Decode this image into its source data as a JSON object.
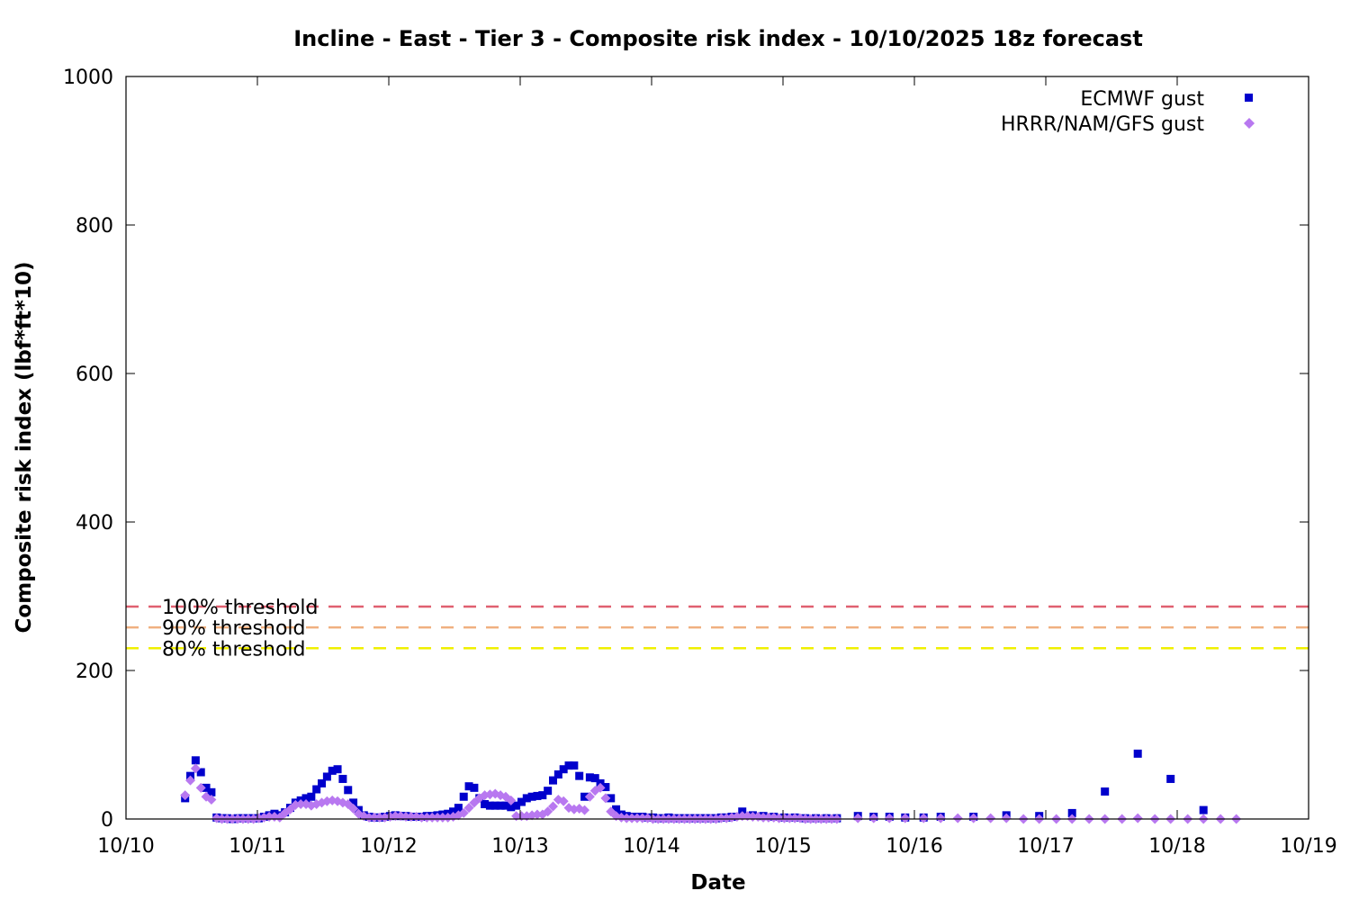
{
  "chart_data": {
    "type": "scatter",
    "title": "Incline - East - Tier 3 - Composite risk index - 10/10/2025 18z forecast",
    "xlabel": "Date",
    "ylabel": "Composite risk index (lbf*ft*10)",
    "xlim": [
      "10/10",
      "10/19"
    ],
    "ylim": [
      0,
      1000
    ],
    "x_ticks": [
      "10/10",
      "10/11",
      "10/12",
      "10/13",
      "10/14",
      "10/15",
      "10/16",
      "10/17",
      "10/18",
      "10/19"
    ],
    "y_ticks": [
      0,
      200,
      400,
      600,
      800,
      1000
    ],
    "grid": false,
    "legend_position": "top-right",
    "thresholds": [
      {
        "label": "100% threshold",
        "value": 286,
        "color": "#e06070"
      },
      {
        "label": "90% threshold",
        "value": 258,
        "color": "#f0b080"
      },
      {
        "label": "80% threshold",
        "value": 230,
        "color": "#f0f000"
      }
    ],
    "series": [
      {
        "name": "ECMWF gust",
        "marker": "square",
        "color": "#0000cc",
        "points": [
          [
            10.45,
            28
          ],
          [
            10.49,
            58
          ],
          [
            10.53,
            79
          ],
          [
            10.57,
            63
          ],
          [
            10.61,
            42
          ],
          [
            10.65,
            36
          ],
          [
            10.69,
            2
          ],
          [
            10.73,
            1
          ],
          [
            10.77,
            1
          ],
          [
            10.81,
            0
          ],
          [
            10.85,
            1
          ],
          [
            10.89,
            1
          ],
          [
            10.93,
            1
          ],
          [
            10.97,
            1
          ],
          [
            11.01,
            1
          ],
          [
            11.05,
            3
          ],
          [
            11.09,
            5
          ],
          [
            11.13,
            7
          ],
          [
            11.17,
            5
          ],
          [
            11.21,
            9
          ],
          [
            11.25,
            15
          ],
          [
            11.29,
            22
          ],
          [
            11.33,
            25
          ],
          [
            11.37,
            28
          ],
          [
            11.41,
            30
          ],
          [
            11.45,
            40
          ],
          [
            11.49,
            48
          ],
          [
            11.53,
            57
          ],
          [
            11.57,
            65
          ],
          [
            11.61,
            67
          ],
          [
            11.65,
            54
          ],
          [
            11.69,
            39
          ],
          [
            11.73,
            22
          ],
          [
            11.77,
            12
          ],
          [
            11.81,
            5
          ],
          [
            11.85,
            3
          ],
          [
            11.89,
            2
          ],
          [
            11.93,
            2
          ],
          [
            11.97,
            3
          ],
          [
            12.01,
            4
          ],
          [
            12.05,
            5
          ],
          [
            12.09,
            4
          ],
          [
            12.13,
            4
          ],
          [
            12.17,
            3
          ],
          [
            12.21,
            3
          ],
          [
            12.25,
            3
          ],
          [
            12.29,
            4
          ],
          [
            12.33,
            4
          ],
          [
            12.37,
            5
          ],
          [
            12.41,
            6
          ],
          [
            12.45,
            7
          ],
          [
            12.49,
            10
          ],
          [
            12.53,
            15
          ],
          [
            12.57,
            30
          ],
          [
            12.61,
            44
          ],
          [
            12.65,
            42
          ],
          [
            12.69,
            28
          ],
          [
            12.73,
            20
          ],
          [
            12.77,
            18
          ],
          [
            12.81,
            18
          ],
          [
            12.85,
            18
          ],
          [
            12.89,
            18
          ],
          [
            12.93,
            16
          ],
          [
            12.97,
            18
          ],
          [
            13.01,
            23
          ],
          [
            13.05,
            28
          ],
          [
            13.09,
            30
          ],
          [
            13.13,
            31
          ],
          [
            13.17,
            32
          ],
          [
            13.21,
            38
          ],
          [
            13.25,
            52
          ],
          [
            13.29,
            60
          ],
          [
            13.33,
            67
          ],
          [
            13.37,
            72
          ],
          [
            13.41,
            72
          ],
          [
            13.45,
            58
          ],
          [
            13.49,
            30
          ],
          [
            13.53,
            56
          ],
          [
            13.57,
            55
          ],
          [
            13.61,
            48
          ],
          [
            13.65,
            43
          ],
          [
            13.69,
            28
          ],
          [
            13.73,
            13
          ],
          [
            13.77,
            6
          ],
          [
            13.81,
            4
          ],
          [
            13.85,
            3
          ],
          [
            13.89,
            3
          ],
          [
            13.93,
            3
          ],
          [
            13.97,
            2
          ],
          [
            14.01,
            2
          ],
          [
            14.05,
            1
          ],
          [
            14.09,
            1
          ],
          [
            14.13,
            2
          ],
          [
            14.17,
            1
          ],
          [
            14.21,
            1
          ],
          [
            14.25,
            1
          ],
          [
            14.29,
            1
          ],
          [
            14.33,
            1
          ],
          [
            14.37,
            1
          ],
          [
            14.41,
            1
          ],
          [
            14.45,
            1
          ],
          [
            14.49,
            1
          ],
          [
            14.53,
            2
          ],
          [
            14.57,
            2
          ],
          [
            14.61,
            3
          ],
          [
            14.69,
            10
          ],
          [
            14.77,
            5
          ],
          [
            14.85,
            4
          ],
          [
            14.93,
            3
          ],
          [
            15.01,
            2
          ],
          [
            15.09,
            2
          ],
          [
            15.17,
            1
          ],
          [
            15.25,
            1
          ],
          [
            15.33,
            1
          ],
          [
            15.41,
            1
          ],
          [
            15.57,
            4
          ],
          [
            15.69,
            3
          ],
          [
            15.81,
            3
          ],
          [
            15.93,
            2
          ],
          [
            16.07,
            2
          ],
          [
            16.2,
            3
          ],
          [
            16.45,
            3
          ],
          [
            16.7,
            5
          ],
          [
            16.95,
            4
          ],
          [
            17.2,
            8
          ],
          [
            17.45,
            37
          ],
          [
            17.7,
            88
          ],
          [
            17.95,
            54
          ],
          [
            18.2,
            12
          ]
        ]
      },
      {
        "name": "HRRR/NAM/GFS gust",
        "marker": "diamond",
        "color": "#b878f0",
        "points": [
          [
            10.45,
            32
          ],
          [
            10.49,
            52
          ],
          [
            10.53,
            68
          ],
          [
            10.57,
            42
          ],
          [
            10.61,
            30
          ],
          [
            10.65,
            26
          ],
          [
            10.69,
            1
          ],
          [
            10.73,
            0
          ],
          [
            10.77,
            0
          ],
          [
            10.81,
            0
          ],
          [
            10.85,
            0
          ],
          [
            10.89,
            0
          ],
          [
            10.93,
            0
          ],
          [
            10.97,
            0
          ],
          [
            11.01,
            1
          ],
          [
            11.05,
            2
          ],
          [
            11.09,
            3
          ],
          [
            11.13,
            3
          ],
          [
            11.17,
            2
          ],
          [
            11.21,
            8
          ],
          [
            11.25,
            13
          ],
          [
            11.29,
            19
          ],
          [
            11.33,
            20
          ],
          [
            11.37,
            20
          ],
          [
            11.41,
            18
          ],
          [
            11.45,
            20
          ],
          [
            11.49,
            22
          ],
          [
            11.53,
            24
          ],
          [
            11.57,
            25
          ],
          [
            11.61,
            24
          ],
          [
            11.65,
            22
          ],
          [
            11.69,
            20
          ],
          [
            11.73,
            14
          ],
          [
            11.77,
            7
          ],
          [
            11.81,
            4
          ],
          [
            11.85,
            2
          ],
          [
            11.89,
            2
          ],
          [
            11.93,
            2
          ],
          [
            11.97,
            2
          ],
          [
            12.01,
            3
          ],
          [
            12.05,
            4
          ],
          [
            12.09,
            4
          ],
          [
            12.13,
            3
          ],
          [
            12.17,
            3
          ],
          [
            12.21,
            3
          ],
          [
            12.25,
            2
          ],
          [
            12.29,
            2
          ],
          [
            12.33,
            2
          ],
          [
            12.37,
            2
          ],
          [
            12.41,
            2
          ],
          [
            12.45,
            2
          ],
          [
            12.49,
            3
          ],
          [
            12.53,
            5
          ],
          [
            12.57,
            8
          ],
          [
            12.61,
            15
          ],
          [
            12.65,
            22
          ],
          [
            12.69,
            28
          ],
          [
            12.73,
            32
          ],
          [
            12.77,
            33
          ],
          [
            12.81,
            34
          ],
          [
            12.85,
            32
          ],
          [
            12.89,
            30
          ],
          [
            12.93,
            25
          ],
          [
            12.97,
            4
          ],
          [
            13.01,
            4
          ],
          [
            13.05,
            4
          ],
          [
            13.09,
            5
          ],
          [
            13.13,
            6
          ],
          [
            13.17,
            6
          ],
          [
            13.21,
            10
          ],
          [
            13.25,
            17
          ],
          [
            13.29,
            26
          ],
          [
            13.33,
            24
          ],
          [
            13.37,
            15
          ],
          [
            13.41,
            13
          ],
          [
            13.45,
            14
          ],
          [
            13.49,
            12
          ],
          [
            13.53,
            30
          ],
          [
            13.57,
            38
          ],
          [
            13.61,
            42
          ],
          [
            13.65,
            28
          ],
          [
            13.69,
            10
          ],
          [
            13.73,
            4
          ],
          [
            13.77,
            2
          ],
          [
            13.81,
            1
          ],
          [
            13.85,
            1
          ],
          [
            13.89,
            1
          ],
          [
            13.93,
            1
          ],
          [
            13.97,
            1
          ],
          [
            14.01,
            0
          ],
          [
            14.05,
            0
          ],
          [
            14.09,
            0
          ],
          [
            14.13,
            0
          ],
          [
            14.17,
            0
          ],
          [
            14.21,
            0
          ],
          [
            14.25,
            0
          ],
          [
            14.29,
            0
          ],
          [
            14.33,
            0
          ],
          [
            14.37,
            0
          ],
          [
            14.41,
            0
          ],
          [
            14.45,
            0
          ],
          [
            14.49,
            0
          ],
          [
            14.53,
            1
          ],
          [
            14.57,
            1
          ],
          [
            14.61,
            2
          ],
          [
            14.65,
            3
          ],
          [
            14.69,
            4
          ],
          [
            14.73,
            4
          ],
          [
            14.77,
            3
          ],
          [
            14.81,
            3
          ],
          [
            14.85,
            2
          ],
          [
            14.89,
            2
          ],
          [
            14.93,
            2
          ],
          [
            14.97,
            1
          ],
          [
            15.01,
            1
          ],
          [
            15.05,
            1
          ],
          [
            15.09,
            1
          ],
          [
            15.13,
            1
          ],
          [
            15.17,
            0
          ],
          [
            15.21,
            0
          ],
          [
            15.25,
            0
          ],
          [
            15.29,
            0
          ],
          [
            15.33,
            0
          ],
          [
            15.37,
            0
          ],
          [
            15.41,
            0
          ],
          [
            15.57,
            1
          ],
          [
            15.69,
            1
          ],
          [
            15.81,
            1
          ],
          [
            15.93,
            1
          ],
          [
            16.07,
            1
          ],
          [
            16.2,
            1
          ],
          [
            16.33,
            1
          ],
          [
            16.45,
            1
          ],
          [
            16.58,
            1
          ],
          [
            16.7,
            1
          ],
          [
            16.83,
            0
          ],
          [
            16.95,
            0
          ],
          [
            17.08,
            0
          ],
          [
            17.2,
            0
          ],
          [
            17.33,
            0
          ],
          [
            17.45,
            0
          ],
          [
            17.58,
            0
          ],
          [
            17.7,
            1
          ],
          [
            17.83,
            0
          ],
          [
            17.95,
            0
          ],
          [
            18.08,
            0
          ],
          [
            18.2,
            0
          ],
          [
            18.33,
            0
          ],
          [
            18.45,
            0
          ]
        ]
      }
    ]
  }
}
